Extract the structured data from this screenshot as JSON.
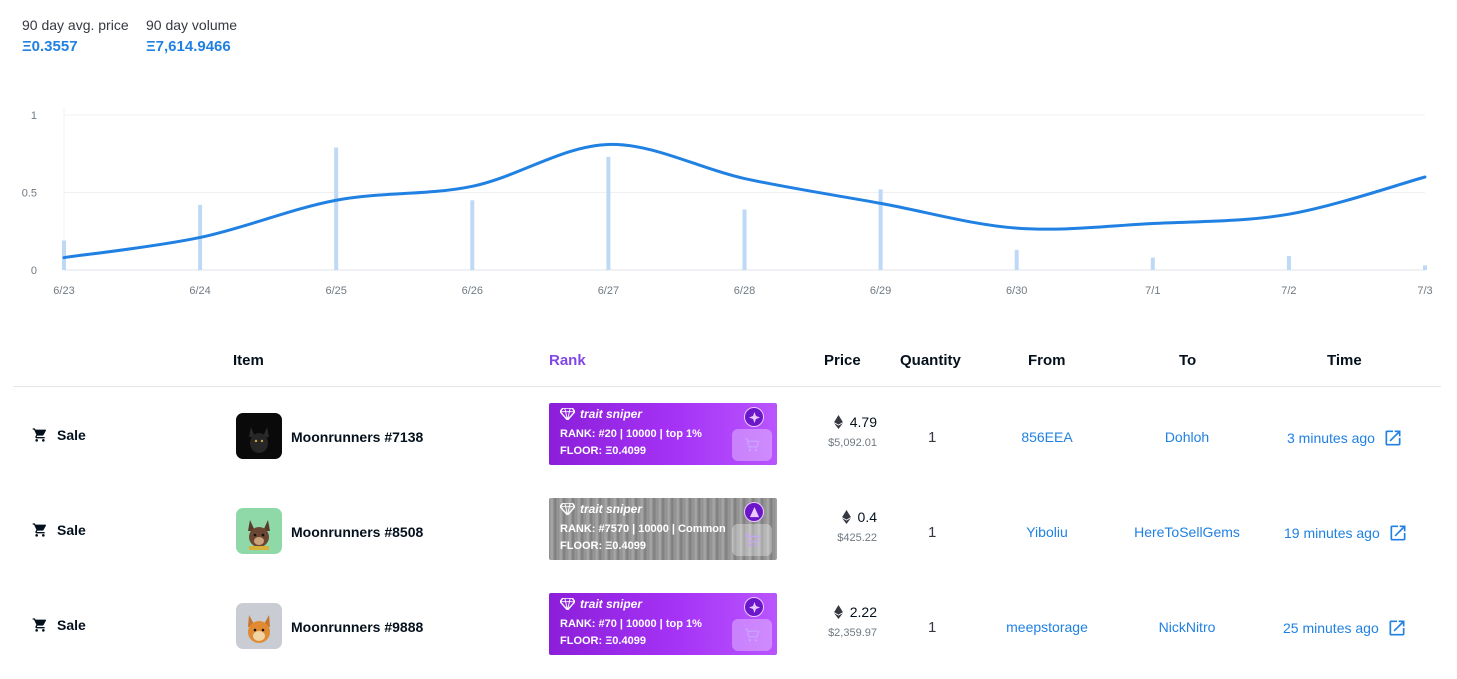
{
  "stats": {
    "avg_label": "90 day avg. price",
    "avg_value": "Ξ0.3557",
    "volume_label": "90 day volume",
    "volume_value": "Ξ7,614.9466"
  },
  "chart_data": {
    "type": "bar",
    "categories": [
      "6/23",
      "6/24",
      "6/25",
      "6/26",
      "6/27",
      "6/28",
      "6/29",
      "6/30",
      "7/1",
      "7/2",
      "7/3"
    ],
    "y_ticks": [
      "0",
      "0.5",
      "1"
    ],
    "ylim": [
      0,
      1
    ],
    "series": [
      {
        "type": "bar",
        "color": "#bdd9f5",
        "values": [
          0.19,
          0.42,
          0.79,
          0.45,
          0.73,
          0.39,
          0.52,
          0.13,
          0.08,
          0.09,
          0.03
        ]
      },
      {
        "type": "line",
        "color": "#2081e2",
        "values": [
          0.08,
          0.21,
          0.45,
          0.54,
          0.81,
          0.59,
          0.43,
          0.27,
          0.3,
          0.36,
          0.6
        ]
      }
    ],
    "grid": true
  },
  "table": {
    "headers": {
      "item": "Item",
      "rank": "Rank",
      "price": "Price",
      "quantity": "Quantity",
      "from": "From",
      "to": "To",
      "time": "Time"
    },
    "rows": [
      {
        "event": "Sale",
        "name": "Moonrunners #7138",
        "thumb_bg": "#0a0a0a",
        "sniper_title": "trait sniper",
        "sniper_rank": "RANK:  #20 | 10000 | top 1%",
        "sniper_floor": "FLOOR:  Ξ0.4099",
        "sniper_style": "purple",
        "price_eth": "4.79",
        "price_usd": "$5,092.01",
        "quantity": "1",
        "from": "856EEA",
        "to": "Dohloh",
        "time": "3 minutes ago"
      },
      {
        "event": "Sale",
        "name": "Moonrunners #8508",
        "thumb_bg": "#8fd9a8",
        "sniper_title": "trait sniper",
        "sniper_rank": "RANK:  #7570 | 10000 | Common",
        "sniper_floor": "FLOOR:  Ξ0.4099",
        "sniper_style": "gray",
        "price_eth": "0.4",
        "price_usd": "$425.22",
        "quantity": "1",
        "from": "Yiboliu",
        "to": "HereToSellGems",
        "time": "19 minutes ago"
      },
      {
        "event": "Sale",
        "name": "Moonrunners #9888",
        "thumb_bg": "#c9ccd3",
        "sniper_title": "trait sniper",
        "sniper_rank": "RANK:  #70 | 10000 | top 1%",
        "sniper_floor": "FLOOR:  Ξ0.4099",
        "sniper_style": "purple",
        "price_eth": "2.22",
        "price_usd": "$2,359.97",
        "quantity": "1",
        "from": "meepstorage",
        "to": "NickNitro",
        "time": "25 minutes ago"
      }
    ]
  }
}
